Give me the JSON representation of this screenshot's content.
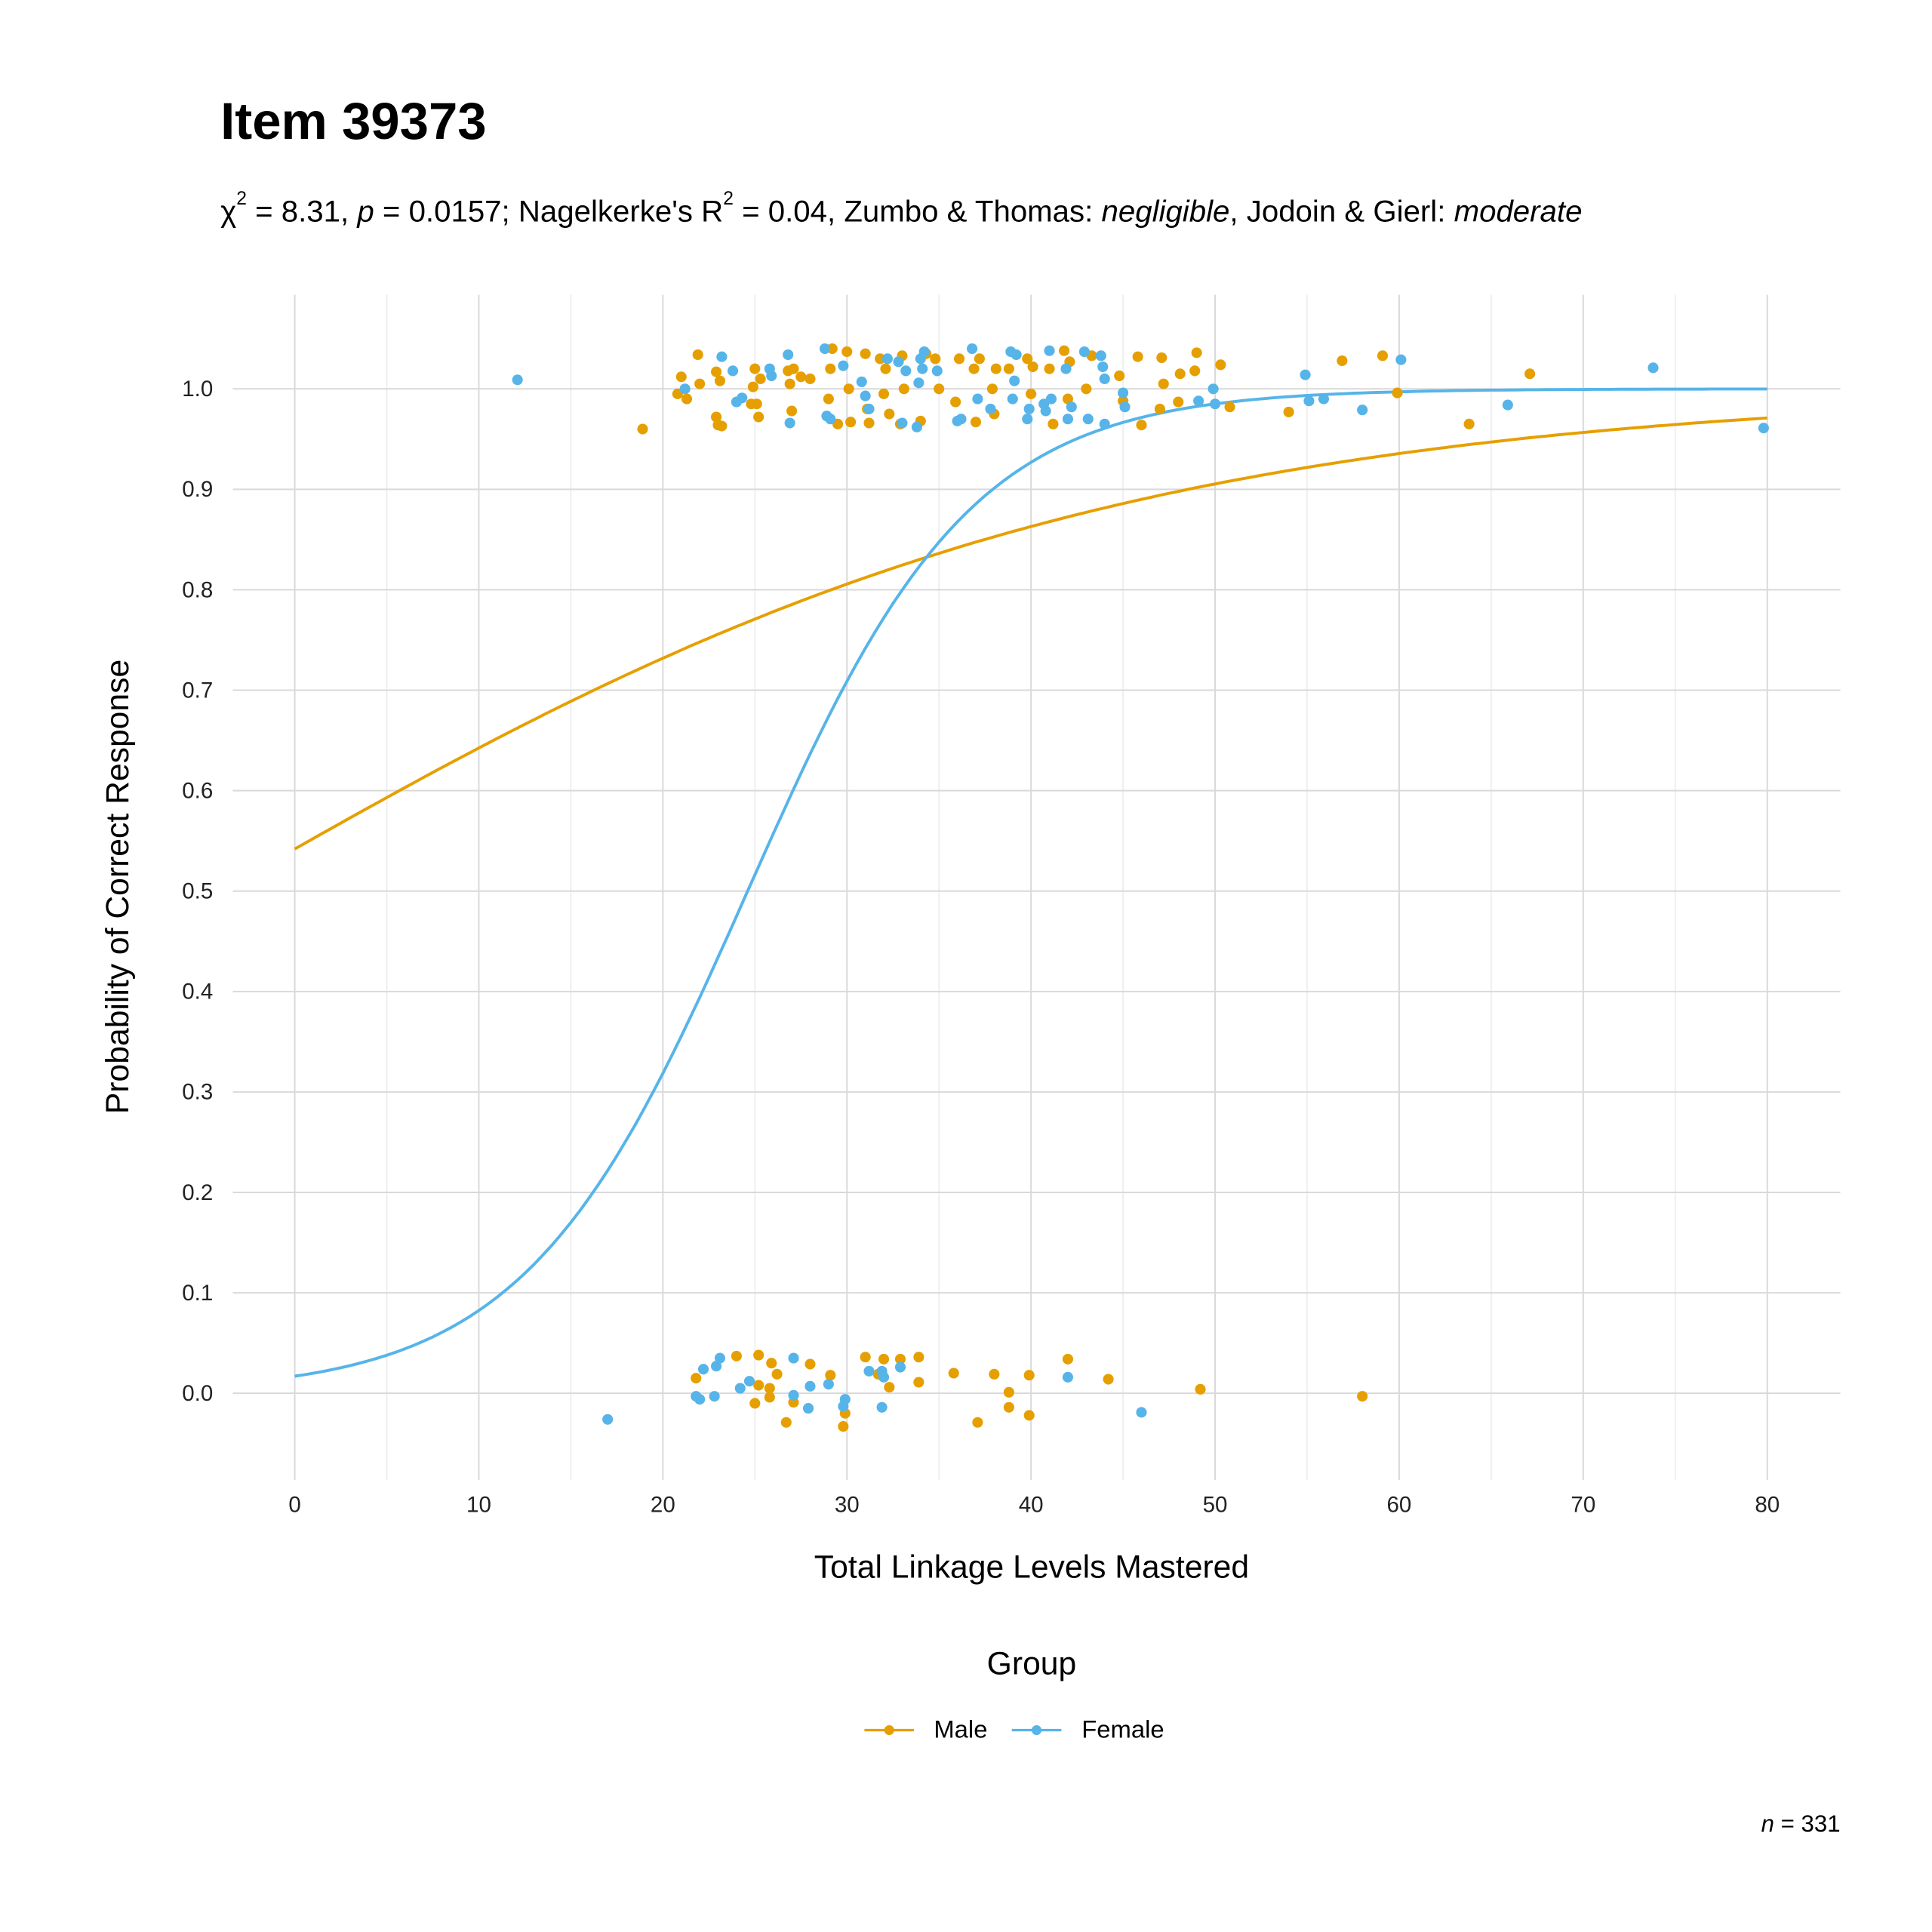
{
  "colors": {
    "male": "#E69F00",
    "female": "#56B4E9",
    "grid": "#d9d9d9"
  },
  "chart_data": {
    "type": "scatter",
    "title": "Item 39373",
    "subtitle": {
      "chi": "χ",
      "chi_exp": "2",
      "part1": " = 8.31, ",
      "p": "p",
      "part2": " = 0.0157; Nagelkerke's R",
      "r_exp": "2",
      "part3": " = 0.04, Zumbo & Thomas: ",
      "zt": "negligible",
      "part4": ", Jodoin & Gierl: ",
      "jg": "moderate"
    },
    "xlabel": "Total Linkage Levels Mastered",
    "ylabel": "Probability of Correct Response",
    "xlim": [
      -4,
      84
    ],
    "ylim": [
      -0.09,
      1.1
    ],
    "xticks": [
      "0",
      "10",
      "20",
      "30",
      "40",
      "50",
      "60",
      "70",
      "80"
    ],
    "yticks": [
      "0.0",
      "0.1",
      "0.2",
      "0.3",
      "0.4",
      "0.5",
      "0.6",
      "0.7",
      "0.8",
      "0.9",
      "1.0"
    ],
    "grid": true,
    "legend": {
      "title": "Group",
      "position": "bottom",
      "entries": [
        "Male",
        "Female"
      ]
    },
    "caption": {
      "n": "n",
      "text": " = 331"
    },
    "series": [
      {
        "name": "Male",
        "curve": {
          "type": "logistic",
          "intercept": 0.168,
          "slope": 0.0418,
          "x_range": [
            0,
            80
          ]
        },
        "points": [
          [
            21.8,
            0.015
          ],
          [
            24,
            0.037
          ],
          [
            25,
            -0.01
          ],
          [
            25.2,
            0.038
          ],
          [
            25.2,
            0.008
          ],
          [
            25.8,
            0.005
          ],
          [
            25.8,
            -0.004
          ],
          [
            25.9,
            0.03
          ],
          [
            26.2,
            0.019
          ],
          [
            26.7,
            -0.029
          ],
          [
            27.1,
            -0.009
          ],
          [
            28,
            0.029
          ],
          [
            29.1,
            0.018
          ],
          [
            29.8,
            -0.033
          ],
          [
            29.9,
            -0.02
          ],
          [
            31,
            0.036
          ],
          [
            31.7,
            0.019
          ],
          [
            32,
            0.034
          ],
          [
            32.3,
            0.006
          ],
          [
            32.9,
            0.034
          ],
          [
            33.9,
            0.036
          ],
          [
            33.9,
            0.011
          ],
          [
            35.8,
            0.02
          ],
          [
            37.1,
            -0.029
          ],
          [
            38,
            0.019
          ],
          [
            38.8,
            0.001
          ],
          [
            38.8,
            -0.014
          ],
          [
            39.9,
            -0.022
          ],
          [
            39.9,
            0.018
          ],
          [
            42,
            0.034
          ],
          [
            44.2,
            0.014
          ],
          [
            49.2,
            0.004
          ],
          [
            58,
            -0.003
          ],
          [
            18.9,
            0.96
          ],
          [
            20.8,
            0.995
          ],
          [
            21,
            1.012
          ],
          [
            21.3,
            0.99
          ],
          [
            21.9,
            1.034
          ],
          [
            22,
            1.005
          ],
          [
            22.9,
            0.972
          ],
          [
            22.9,
            1.017
          ],
          [
            23,
            0.964
          ],
          [
            23.1,
            1.008
          ],
          [
            23.2,
            0.963
          ],
          [
            24.8,
            0.985
          ],
          [
            24.9,
            1.002
          ],
          [
            25,
            1.02
          ],
          [
            25.1,
            0.985
          ],
          [
            25.2,
            0.972
          ],
          [
            25.3,
            1.01
          ],
          [
            26.8,
            1.018
          ],
          [
            26.9,
            1.005
          ],
          [
            27,
            0.978
          ],
          [
            27.1,
            1.02
          ],
          [
            27.5,
            1.012
          ],
          [
            28,
            1.01
          ],
          [
            29,
            0.99
          ],
          [
            29.1,
            1.02
          ],
          [
            29.2,
            1.04
          ],
          [
            29.5,
            0.965
          ],
          [
            30,
            1.037
          ],
          [
            30.1,
            1.0
          ],
          [
            30.2,
            0.967
          ],
          [
            31,
            1.035
          ],
          [
            31.1,
            0.98
          ],
          [
            31.2,
            0.966
          ],
          [
            31.8,
            1.03
          ],
          [
            32,
            0.995
          ],
          [
            32.1,
            1.02
          ],
          [
            32.3,
            0.975
          ],
          [
            32.9,
            0.965
          ],
          [
            33,
            1.033
          ],
          [
            33.1,
            1.0
          ],
          [
            34,
            0.968
          ],
          [
            34.3,
            1.035
          ],
          [
            34.8,
            1.03
          ],
          [
            35,
            1.0
          ],
          [
            35.9,
            0.987
          ],
          [
            36.1,
            1.03
          ],
          [
            36.9,
            1.02
          ],
          [
            37,
            0.967
          ],
          [
            37.2,
            1.03
          ],
          [
            37.9,
            1.0
          ],
          [
            38,
            0.975
          ],
          [
            38.1,
            1.02
          ],
          [
            38.8,
            1.02
          ],
          [
            39.8,
            1.03
          ],
          [
            40,
            0.995
          ],
          [
            40.1,
            1.022
          ],
          [
            41,
            1.02
          ],
          [
            41.2,
            0.965
          ],
          [
            41.8,
            1.038
          ],
          [
            42,
            0.99
          ],
          [
            42.1,
            1.027
          ],
          [
            43,
            1.0
          ],
          [
            43.3,
            1.033
          ],
          [
            44.8,
            1.013
          ],
          [
            45,
            0.988
          ],
          [
            45.8,
            1.032
          ],
          [
            46,
            0.964
          ],
          [
            47,
            0.98
          ],
          [
            47.1,
            1.031
          ],
          [
            47.2,
            1.005
          ],
          [
            48,
            0.987
          ],
          [
            48.1,
            1.015
          ],
          [
            48.9,
            1.018
          ],
          [
            49,
            1.036
          ],
          [
            50.3,
            1.024
          ],
          [
            50.8,
            0.982
          ],
          [
            54,
            0.977
          ],
          [
            56.9,
            1.028
          ],
          [
            59.1,
            1.033
          ],
          [
            59.9,
            0.996
          ],
          [
            63.8,
            0.965
          ],
          [
            67.1,
            1.015
          ]
        ]
      },
      {
        "name": "Female",
        "curve": {
          "type": "logistic",
          "intercept": -4.06,
          "slope": 0.165,
          "x_range": [
            0,
            80
          ]
        },
        "points": [
          [
            17,
            -0.026
          ],
          [
            21.8,
            -0.003
          ],
          [
            22,
            -0.006
          ],
          [
            22.2,
            0.024
          ],
          [
            22.8,
            -0.003
          ],
          [
            22.9,
            0.027
          ],
          [
            23.1,
            0.035
          ],
          [
            24.2,
            0.005
          ],
          [
            24.7,
            0.012
          ],
          [
            27.1,
            0.035
          ],
          [
            27.1,
            -0.002
          ],
          [
            27.9,
            -0.015
          ],
          [
            28,
            0.007
          ],
          [
            29,
            0.009
          ],
          [
            29.8,
            -0.013
          ],
          [
            29.9,
            -0.006
          ],
          [
            31.2,
            0.022
          ],
          [
            31.9,
            0.022
          ],
          [
            32,
            0.016
          ],
          [
            31.9,
            -0.014
          ],
          [
            32.9,
            0.026
          ],
          [
            42,
            0.016
          ],
          [
            46,
            -0.019
          ],
          [
            12.1,
            1.009
          ],
          [
            21.2,
            1.0
          ],
          [
            23.2,
            1.032
          ],
          [
            23.8,
            1.018
          ],
          [
            24,
            0.987
          ],
          [
            24.3,
            0.991
          ],
          [
            25.8,
            1.02
          ],
          [
            25.9,
            1.013
          ],
          [
            26.8,
            1.034
          ],
          [
            26.9,
            0.966
          ],
          [
            28.8,
            1.04
          ],
          [
            28.9,
            0.973
          ],
          [
            29.1,
            0.97
          ],
          [
            29.8,
            1.023
          ],
          [
            30.8,
            1.007
          ],
          [
            31,
            0.993
          ],
          [
            31.2,
            0.98
          ],
          [
            32.2,
            1.03
          ],
          [
            32.8,
            1.027
          ],
          [
            33,
            0.966
          ],
          [
            33.2,
            1.018
          ],
          [
            33.8,
            0.962
          ],
          [
            33.9,
            1.006
          ],
          [
            34,
            1.03
          ],
          [
            34.1,
            1.02
          ],
          [
            34.2,
            1.037
          ],
          [
            34.9,
            1.018
          ],
          [
            36,
            0.968
          ],
          [
            36.2,
            0.97
          ],
          [
            36.8,
            1.04
          ],
          [
            37.1,
            0.99
          ],
          [
            37.8,
            0.98
          ],
          [
            38.9,
            1.037
          ],
          [
            39,
            0.99
          ],
          [
            39.1,
            1.008
          ],
          [
            39.2,
            1.034
          ],
          [
            39.8,
            0.97
          ],
          [
            39.9,
            0.98
          ],
          [
            40.7,
            0.985
          ],
          [
            40.8,
            0.978
          ],
          [
            41,
            1.038
          ],
          [
            41.1,
            0.99
          ],
          [
            41.9,
            1.02
          ],
          [
            42,
            0.97
          ],
          [
            42.2,
            0.982
          ],
          [
            42.9,
            1.037
          ],
          [
            43.1,
            0.97
          ],
          [
            43.8,
            1.033
          ],
          [
            43.9,
            1.022
          ],
          [
            44,
            0.965
          ],
          [
            44,
            1.01
          ],
          [
            45,
            0.996
          ],
          [
            45.1,
            0.982
          ],
          [
            49.1,
            0.988
          ],
          [
            49.9,
            1.0
          ],
          [
            50,
            0.985
          ],
          [
            54.9,
            1.014
          ],
          [
            55.1,
            0.988
          ],
          [
            55.9,
            0.99
          ],
          [
            58,
            0.979
          ],
          [
            60.1,
            1.029
          ],
          [
            65.9,
            0.984
          ],
          [
            73.8,
            1.021
          ],
          [
            79.8,
            0.961
          ]
        ]
      }
    ]
  }
}
